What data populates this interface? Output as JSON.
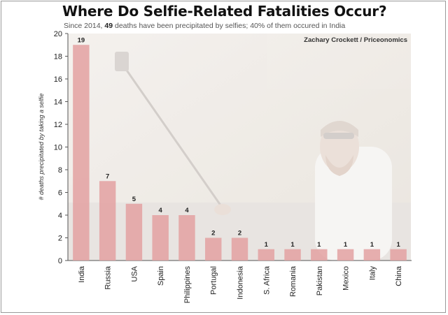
{
  "header": {
    "title": "Where Do Selfie-Related Fatalities Occur?",
    "subtitle_pre": "Since 2014, ",
    "subtitle_bold": "49",
    "subtitle_post": " deaths have been precipitated by selfies; 40% of them occured in India"
  },
  "credit": "Zachary Crockett / Priceonomics",
  "colors": {
    "bar": "#e3a1a1",
    "bar_stroke": "#d88c8c",
    "axis": "#555555",
    "photo_tint": "#efe9e4"
  },
  "chart_data": {
    "type": "bar",
    "ylabel": "# deaths precipitated by taking a selfie",
    "ylim": [
      0,
      20
    ],
    "yticks": [
      0,
      2,
      4,
      6,
      8,
      10,
      12,
      14,
      16,
      18,
      20
    ],
    "categories": [
      "India",
      "Russia",
      "USA",
      "Spain",
      "Philippines",
      "Portugal",
      "Indonesia",
      "S. Africa",
      "Romania",
      "Pakistan",
      "Mexico",
      "Italy",
      "China"
    ],
    "values": [
      19,
      7,
      5,
      4,
      4,
      2,
      2,
      1,
      1,
      1,
      1,
      1,
      1
    ],
    "data_labels": true,
    "grid": false
  }
}
